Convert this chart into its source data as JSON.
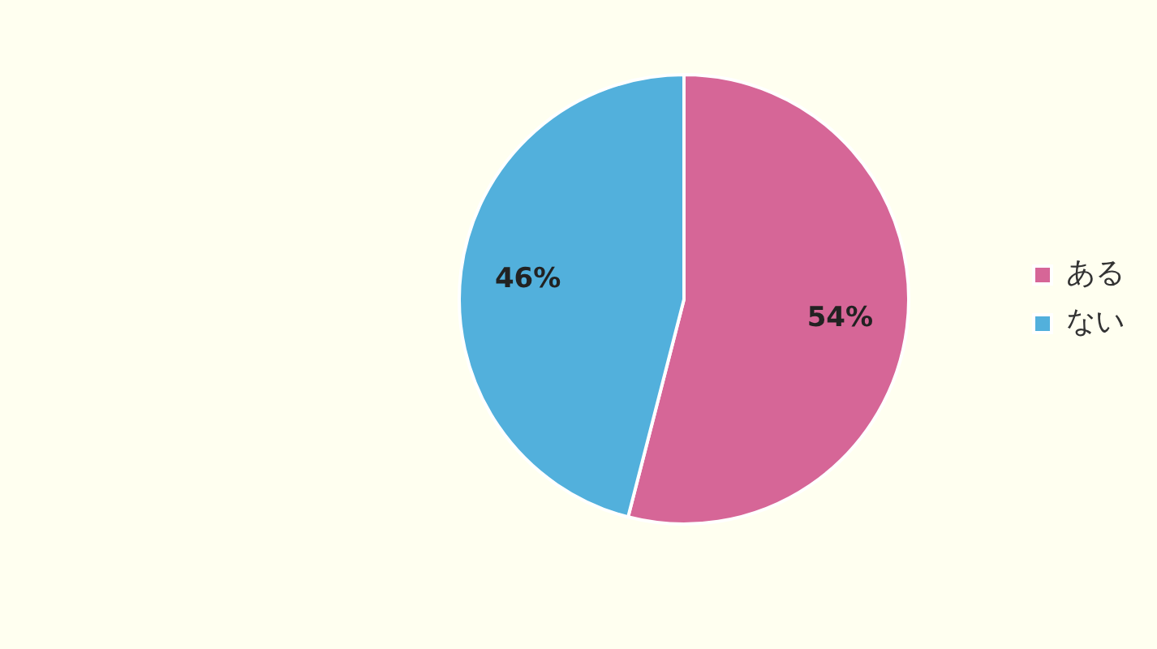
{
  "chart_data": {
    "type": "pie",
    "categories": [
      "ある",
      "ない"
    ],
    "values": [
      54,
      46
    ],
    "colors": [
      "#d66697",
      "#52b0dc"
    ],
    "value_labels": [
      "54%",
      "46%"
    ],
    "legend": "right"
  }
}
